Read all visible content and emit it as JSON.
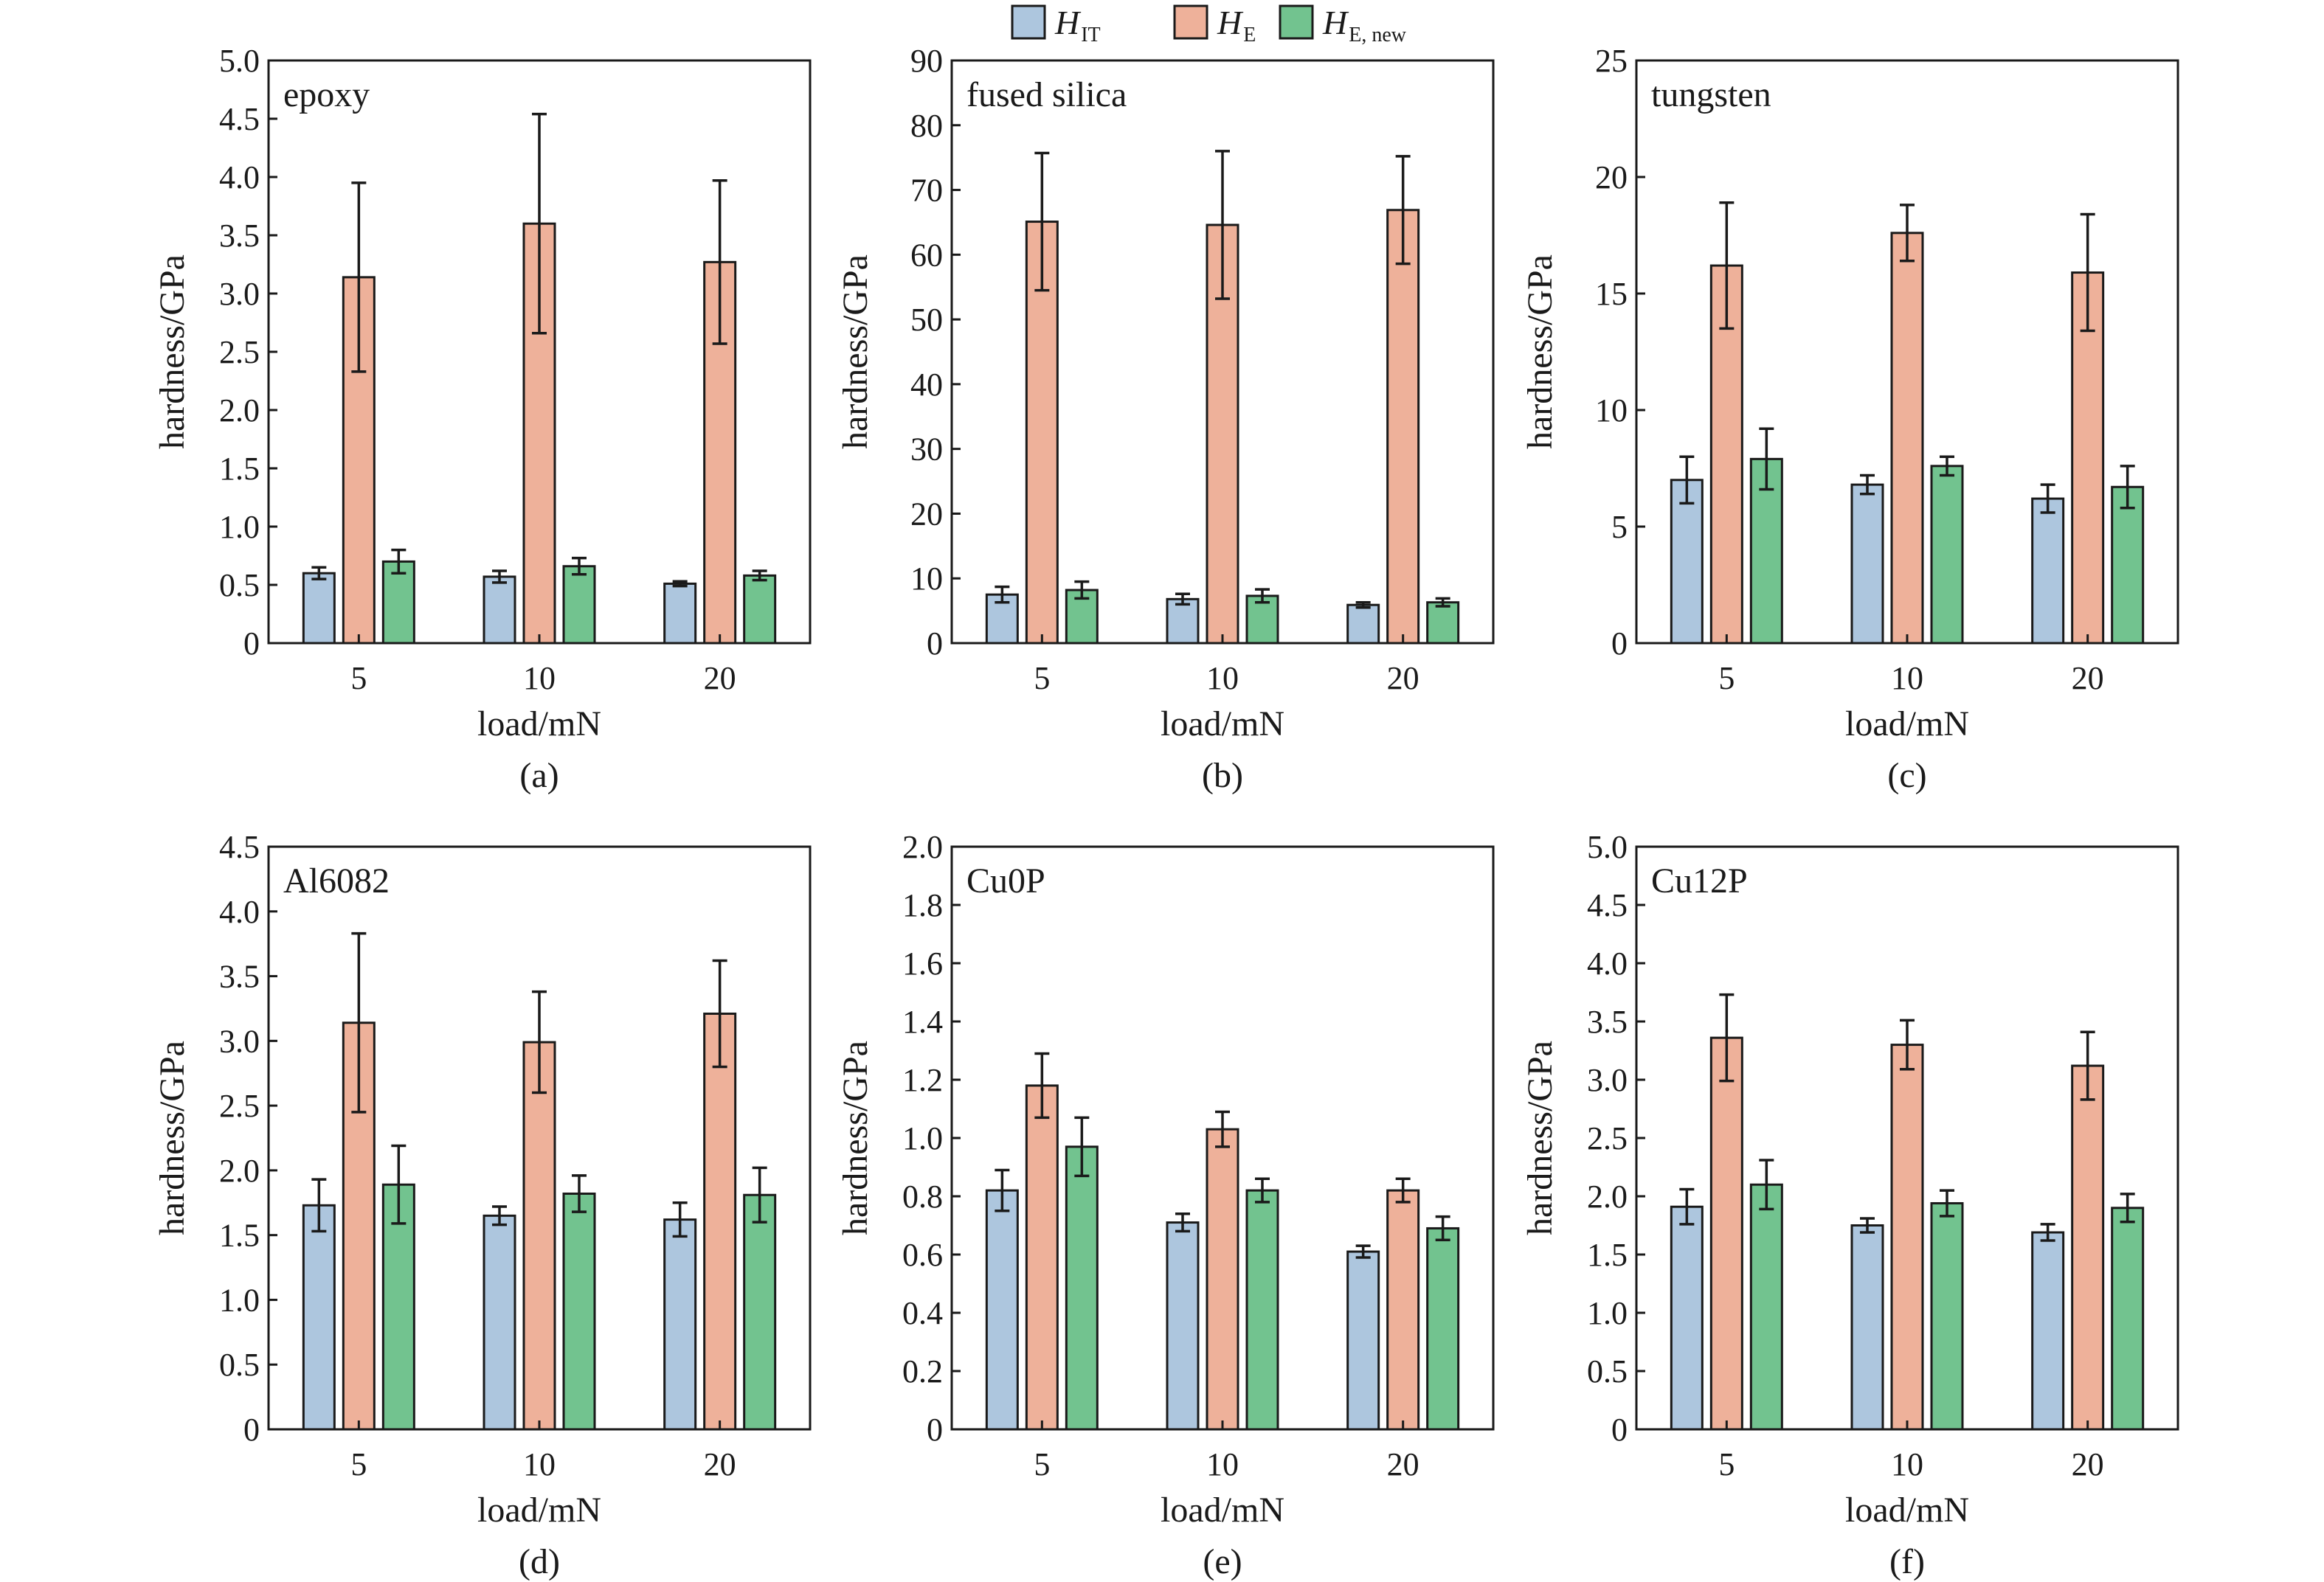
{
  "legend": {
    "items": [
      {
        "base": "H",
        "sub": "IT",
        "color": "#adc6de"
      },
      {
        "base": "H",
        "sub": "E",
        "color": "#eeb19a"
      },
      {
        "base": "H",
        "sub": "E, new",
        "color": "#72c38f"
      }
    ]
  },
  "chart_data": [
    {
      "type": "bar",
      "panel": "(a)",
      "material": "epoxy",
      "categories": [
        "5",
        "10",
        "20"
      ],
      "xlabel": "load/mN",
      "ylabel": "hardness/GPa",
      "ylim": [
        0,
        5
      ],
      "yticks": [
        "0",
        "0.5",
        "1.0",
        "1.5",
        "2.0",
        "2.5",
        "3.0",
        "3.5",
        "4.0",
        "4.5",
        "5.0"
      ],
      "series": [
        {
          "name": "H_IT",
          "values": [
            0.6,
            0.57,
            0.51
          ],
          "errors": [
            0.05,
            0.05,
            0.02
          ]
        },
        {
          "name": "H_E",
          "values": [
            3.14,
            3.6,
            3.27
          ],
          "errors": [
            0.81,
            0.94,
            0.7
          ]
        },
        {
          "name": "H_E,new",
          "values": [
            0.7,
            0.66,
            0.58
          ],
          "errors": [
            0.1,
            0.07,
            0.04
          ]
        }
      ]
    },
    {
      "type": "bar",
      "panel": "(b)",
      "material": "fused silica",
      "categories": [
        "5",
        "10",
        "20"
      ],
      "xlabel": "load/mN",
      "ylabel": "hardness/GPa",
      "ylim": [
        0,
        90
      ],
      "yticks": [
        "0",
        "10",
        "20",
        "30",
        "40",
        "50",
        "60",
        "70",
        "80",
        "90"
      ],
      "series": [
        {
          "name": "H_IT",
          "values": [
            7.5,
            6.8,
            5.9
          ],
          "errors": [
            1.2,
            0.8,
            0.4
          ]
        },
        {
          "name": "H_E",
          "values": [
            65.1,
            64.6,
            66.9
          ],
          "errors": [
            10.6,
            11.4,
            8.3
          ]
        },
        {
          "name": "H_E,new",
          "values": [
            8.2,
            7.3,
            6.3
          ],
          "errors": [
            1.3,
            1.0,
            0.6
          ]
        }
      ]
    },
    {
      "type": "bar",
      "panel": "(c)",
      "material": "tungsten",
      "categories": [
        "5",
        "10",
        "20"
      ],
      "xlabel": "load/mN",
      "ylabel": "hardness/GPa",
      "ylim": [
        0,
        25
      ],
      "yticks": [
        "0",
        "5",
        "10",
        "15",
        "20",
        "25"
      ],
      "series": [
        {
          "name": "H_IT",
          "values": [
            7.0,
            6.8,
            6.2
          ],
          "errors": [
            1.0,
            0.4,
            0.6
          ]
        },
        {
          "name": "H_E",
          "values": [
            16.2,
            17.6,
            15.9
          ],
          "errors": [
            2.7,
            1.2,
            2.5
          ]
        },
        {
          "name": "H_E,new",
          "values": [
            7.9,
            7.6,
            6.7
          ],
          "errors": [
            1.3,
            0.4,
            0.9
          ]
        }
      ]
    },
    {
      "type": "bar",
      "panel": "(d)",
      "material": "Al6082",
      "categories": [
        "5",
        "10",
        "20"
      ],
      "xlabel": "load/mN",
      "ylabel": "hardness/GPa",
      "ylim": [
        0,
        4.5
      ],
      "yticks": [
        "0",
        "0.5",
        "1.0",
        "1.5",
        "2.0",
        "2.5",
        "3.0",
        "3.5",
        "4.0",
        "4.5"
      ],
      "series": [
        {
          "name": "H_IT",
          "values": [
            1.73,
            1.65,
            1.62
          ],
          "errors": [
            0.2,
            0.07,
            0.13
          ]
        },
        {
          "name": "H_E",
          "values": [
            3.14,
            2.99,
            3.21
          ],
          "errors": [
            0.69,
            0.39,
            0.41
          ]
        },
        {
          "name": "H_E,new",
          "values": [
            1.89,
            1.82,
            1.81
          ],
          "errors": [
            0.3,
            0.14,
            0.21
          ]
        }
      ]
    },
    {
      "type": "bar",
      "panel": "(e)",
      "material": "Cu0P",
      "categories": [
        "5",
        "10",
        "20"
      ],
      "xlabel": "load/mN",
      "ylabel": "hardness/GPa",
      "ylim": [
        0,
        2.0
      ],
      "yticks": [
        "0",
        "0.2",
        "0.4",
        "0.6",
        "0.8",
        "1.0",
        "1.2",
        "1.4",
        "1.6",
        "1.8",
        "2.0"
      ],
      "series": [
        {
          "name": "H_IT",
          "values": [
            0.82,
            0.71,
            0.61
          ],
          "errors": [
            0.07,
            0.03,
            0.02
          ]
        },
        {
          "name": "H_E",
          "values": [
            1.18,
            1.03,
            0.82
          ],
          "errors": [
            0.11,
            0.06,
            0.04
          ]
        },
        {
          "name": "H_E,new",
          "values": [
            0.97,
            0.82,
            0.69
          ],
          "errors": [
            0.1,
            0.04,
            0.04
          ]
        }
      ]
    },
    {
      "type": "bar",
      "panel": "(f)",
      "material": "Cu12P",
      "categories": [
        "5",
        "10",
        "20"
      ],
      "xlabel": "load/mN",
      "ylabel": "hardness/GPa",
      "ylim": [
        0,
        5.0
      ],
      "yticks": [
        "0",
        "0.5",
        "1.0",
        "1.5",
        "2.0",
        "2.5",
        "3.0",
        "3.5",
        "4.0",
        "4.5",
        "5.0"
      ],
      "series": [
        {
          "name": "H_IT",
          "values": [
            1.91,
            1.75,
            1.69
          ],
          "errors": [
            0.15,
            0.06,
            0.07
          ]
        },
        {
          "name": "H_E",
          "values": [
            3.36,
            3.3,
            3.12
          ],
          "errors": [
            0.37,
            0.21,
            0.29
          ]
        },
        {
          "name": "H_E,new",
          "values": [
            2.1,
            1.94,
            1.9
          ],
          "errors": [
            0.21,
            0.11,
            0.12
          ]
        }
      ]
    }
  ]
}
